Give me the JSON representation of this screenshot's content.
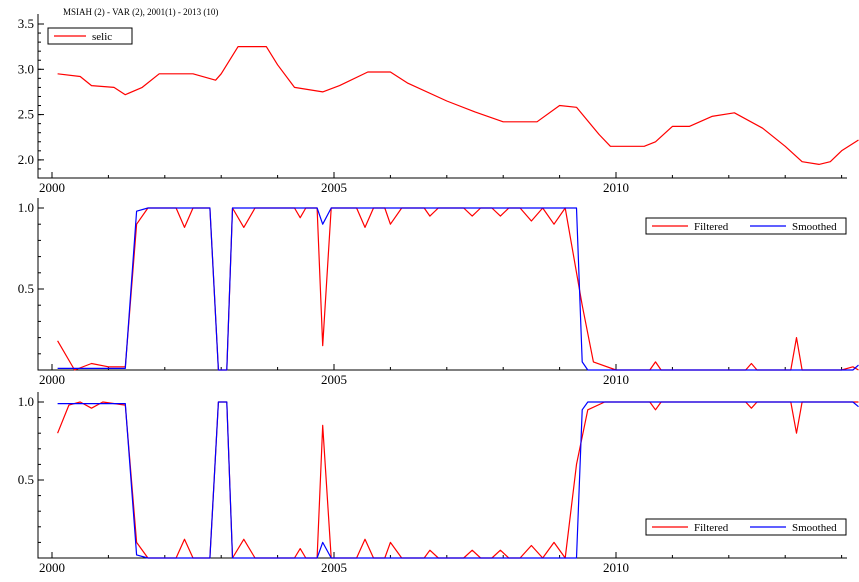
{
  "title": "MSIAH (2) - VAR (2), 2001(1) - 2013 (10)",
  "colors": {
    "red": "#ff0000",
    "blue": "#0000ff"
  },
  "chart_data": [
    {
      "type": "line",
      "panel": 1,
      "ylim": [
        1.8,
        3.5
      ],
      "xlim": [
        2000,
        2014
      ],
      "yticks": [
        "2.0",
        "2.5",
        "3.0",
        "3.5"
      ],
      "xticks": [
        "2000",
        "2005",
        "2010"
      ],
      "legend": "top-left",
      "series": [
        {
          "name": "selic",
          "color": "#ff0000",
          "points": [
            [
              2000.1,
              2.95
            ],
            [
              2000.5,
              2.92
            ],
            [
              2000.7,
              2.82
            ],
            [
              2001.1,
              2.8
            ],
            [
              2001.3,
              2.72
            ],
            [
              2001.6,
              2.8
            ],
            [
              2001.9,
              2.95
            ],
            [
              2002.5,
              2.95
            ],
            [
              2002.9,
              2.88
            ],
            [
              2003.0,
              2.95
            ],
            [
              2003.3,
              3.25
            ],
            [
              2003.8,
              3.25
            ],
            [
              2004.0,
              3.05
            ],
            [
              2004.3,
              2.8
            ],
            [
              2004.8,
              2.75
            ],
            [
              2005.1,
              2.82
            ],
            [
              2005.6,
              2.97
            ],
            [
              2006.0,
              2.97
            ],
            [
              2006.3,
              2.85
            ],
            [
              2007.0,
              2.65
            ],
            [
              2007.5,
              2.53
            ],
            [
              2008.0,
              2.42
            ],
            [
              2008.6,
              2.42
            ],
            [
              2009.0,
              2.6
            ],
            [
              2009.3,
              2.58
            ],
            [
              2009.7,
              2.28
            ],
            [
              2009.9,
              2.15
            ],
            [
              2010.5,
              2.15
            ],
            [
              2010.7,
              2.2
            ],
            [
              2011.0,
              2.37
            ],
            [
              2011.3,
              2.37
            ],
            [
              2011.7,
              2.48
            ],
            [
              2012.1,
              2.52
            ],
            [
              2012.6,
              2.35
            ],
            [
              2013.0,
              2.15
            ],
            [
              2013.3,
              1.98
            ],
            [
              2013.6,
              1.95
            ],
            [
              2013.8,
              1.98
            ],
            [
              2014.0,
              2.1
            ],
            [
              2014.3,
              2.22
            ]
          ]
        }
      ]
    },
    {
      "type": "line",
      "panel": 2,
      "ylim": [
        0,
        1.0
      ],
      "xlim": [
        2000,
        2014
      ],
      "yticks": [
        "0.5",
        "1.0"
      ],
      "xticks": [
        "2000",
        "2005",
        "2010"
      ],
      "legend": "top-right",
      "series": [
        {
          "name": "Filtered",
          "color": "#ff0000",
          "points": [
            [
              2000.1,
              0.18
            ],
            [
              2000.4,
              0.0
            ],
            [
              2000.7,
              0.04
            ],
            [
              2001.0,
              0.02
            ],
            [
              2001.3,
              0.02
            ],
            [
              2001.5,
              0.9
            ],
            [
              2001.7,
              1.0
            ],
            [
              2002.2,
              1.0
            ],
            [
              2002.35,
              0.88
            ],
            [
              2002.5,
              1.0
            ],
            [
              2002.8,
              1.0
            ],
            [
              2002.95,
              0.0
            ],
            [
              2003.1,
              0.0
            ],
            [
              2003.2,
              1.0
            ],
            [
              2003.4,
              0.88
            ],
            [
              2003.6,
              1.0
            ],
            [
              2004.3,
              1.0
            ],
            [
              2004.4,
              0.94
            ],
            [
              2004.5,
              1.0
            ],
            [
              2004.7,
              1.0
            ],
            [
              2004.8,
              0.15
            ],
            [
              2004.95,
              1.0
            ],
            [
              2005.4,
              1.0
            ],
            [
              2005.55,
              0.88
            ],
            [
              2005.7,
              1.0
            ],
            [
              2005.9,
              1.0
            ],
            [
              2006.0,
              0.9
            ],
            [
              2006.2,
              1.0
            ],
            [
              2006.6,
              1.0
            ],
            [
              2006.7,
              0.95
            ],
            [
              2006.85,
              1.0
            ],
            [
              2007.3,
              1.0
            ],
            [
              2007.45,
              0.95
            ],
            [
              2007.6,
              1.0
            ],
            [
              2007.8,
              1.0
            ],
            [
              2007.95,
              0.95
            ],
            [
              2008.1,
              1.0
            ],
            [
              2008.3,
              1.0
            ],
            [
              2008.5,
              0.92
            ],
            [
              2008.7,
              1.0
            ],
            [
              2008.9,
              0.9
            ],
            [
              2009.1,
              1.0
            ],
            [
              2009.4,
              0.4
            ],
            [
              2009.6,
              0.05
            ],
            [
              2010.0,
              0.0
            ],
            [
              2010.6,
              0.0
            ],
            [
              2010.7,
              0.05
            ],
            [
              2010.8,
              0.0
            ],
            [
              2012.3,
              0.0
            ],
            [
              2012.4,
              0.04
            ],
            [
              2012.5,
              0.0
            ],
            [
              2013.1,
              0.0
            ],
            [
              2013.2,
              0.2
            ],
            [
              2013.3,
              0.0
            ],
            [
              2014.0,
              0.0
            ],
            [
              2014.2,
              0.02
            ],
            [
              2014.3,
              0.0
            ]
          ]
        },
        {
          "name": "Smoothed",
          "color": "#0000ff",
          "points": [
            [
              2000.1,
              0.01
            ],
            [
              2001.3,
              0.01
            ],
            [
              2001.5,
              0.98
            ],
            [
              2001.7,
              1.0
            ],
            [
              2002.8,
              1.0
            ],
            [
              2002.95,
              0.0
            ],
            [
              2003.1,
              0.0
            ],
            [
              2003.2,
              1.0
            ],
            [
              2004.7,
              1.0
            ],
            [
              2004.8,
              0.9
            ],
            [
              2004.95,
              1.0
            ],
            [
              2009.3,
              1.0
            ],
            [
              2009.4,
              0.05
            ],
            [
              2009.5,
              0.0
            ],
            [
              2014.2,
              0.0
            ],
            [
              2014.3,
              0.03
            ]
          ]
        }
      ]
    },
    {
      "type": "line",
      "panel": 3,
      "ylim": [
        0,
        1.0
      ],
      "xlim": [
        2000,
        2014
      ],
      "yticks": [
        "0.5",
        "1.0"
      ],
      "xticks": [
        "2000",
        "2005",
        "2010"
      ],
      "legend": "bottom-right",
      "series": [
        {
          "name": "Filtered",
          "color": "#ff0000",
          "points": [
            [
              2000.1,
              0.8
            ],
            [
              2000.3,
              0.98
            ],
            [
              2000.5,
              1.0
            ],
            [
              2000.7,
              0.96
            ],
            [
              2000.9,
              1.0
            ],
            [
              2001.3,
              0.98
            ],
            [
              2001.5,
              0.1
            ],
            [
              2001.7,
              0.0
            ],
            [
              2002.2,
              0.0
            ],
            [
              2002.35,
              0.12
            ],
            [
              2002.5,
              0.0
            ],
            [
              2002.8,
              0.0
            ],
            [
              2002.95,
              1.0
            ],
            [
              2003.1,
              1.0
            ],
            [
              2003.2,
              0.0
            ],
            [
              2003.4,
              0.12
            ],
            [
              2003.6,
              0.0
            ],
            [
              2004.3,
              0.0
            ],
            [
              2004.4,
              0.06
            ],
            [
              2004.5,
              0.0
            ],
            [
              2004.7,
              0.0
            ],
            [
              2004.8,
              0.85
            ],
            [
              2004.95,
              0.0
            ],
            [
              2005.4,
              0.0
            ],
            [
              2005.55,
              0.12
            ],
            [
              2005.7,
              0.0
            ],
            [
              2005.9,
              0.0
            ],
            [
              2006.0,
              0.1
            ],
            [
              2006.2,
              0.0
            ],
            [
              2006.6,
              0.0
            ],
            [
              2006.7,
              0.05
            ],
            [
              2006.85,
              0.0
            ],
            [
              2007.3,
              0.0
            ],
            [
              2007.45,
              0.05
            ],
            [
              2007.6,
              0.0
            ],
            [
              2007.8,
              0.0
            ],
            [
              2007.95,
              0.05
            ],
            [
              2008.1,
              0.0
            ],
            [
              2008.3,
              0.0
            ],
            [
              2008.5,
              0.08
            ],
            [
              2008.7,
              0.0
            ],
            [
              2008.9,
              0.1
            ],
            [
              2009.1,
              0.0
            ],
            [
              2009.3,
              0.6
            ],
            [
              2009.5,
              0.95
            ],
            [
              2009.8,
              1.0
            ],
            [
              2010.6,
              1.0
            ],
            [
              2010.7,
              0.95
            ],
            [
              2010.8,
              1.0
            ],
            [
              2012.3,
              1.0
            ],
            [
              2012.4,
              0.96
            ],
            [
              2012.5,
              1.0
            ],
            [
              2013.1,
              1.0
            ],
            [
              2013.2,
              0.8
            ],
            [
              2013.3,
              1.0
            ],
            [
              2014.3,
              1.0
            ]
          ]
        },
        {
          "name": "Smoothed",
          "color": "#0000ff",
          "points": [
            [
              2000.1,
              0.99
            ],
            [
              2001.3,
              0.99
            ],
            [
              2001.5,
              0.02
            ],
            [
              2001.7,
              0.0
            ],
            [
              2002.8,
              0.0
            ],
            [
              2002.95,
              1.0
            ],
            [
              2003.1,
              1.0
            ],
            [
              2003.2,
              0.0
            ],
            [
              2004.7,
              0.0
            ],
            [
              2004.8,
              0.1
            ],
            [
              2004.95,
              0.0
            ],
            [
              2009.3,
              0.0
            ],
            [
              2009.4,
              0.95
            ],
            [
              2009.5,
              1.0
            ],
            [
              2014.2,
              1.0
            ],
            [
              2014.3,
              0.97
            ]
          ]
        }
      ]
    }
  ]
}
